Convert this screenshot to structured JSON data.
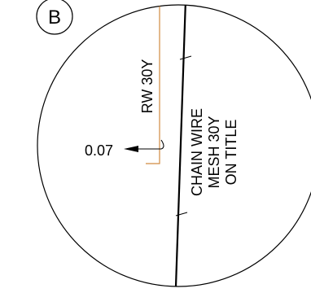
{
  "detail": {
    "marker_label": "B"
  },
  "labels": {
    "retaining_wall": "RW 30Y",
    "offset_value": "0.07",
    "fence_line_1": "CHAIN WIRE",
    "fence_line_2": "MESH 30Y",
    "fence_line_3": "ON TITLE"
  },
  "colors": {
    "linework": "#000000",
    "wall_outline": "#d08a40",
    "background": "#ffffff"
  }
}
